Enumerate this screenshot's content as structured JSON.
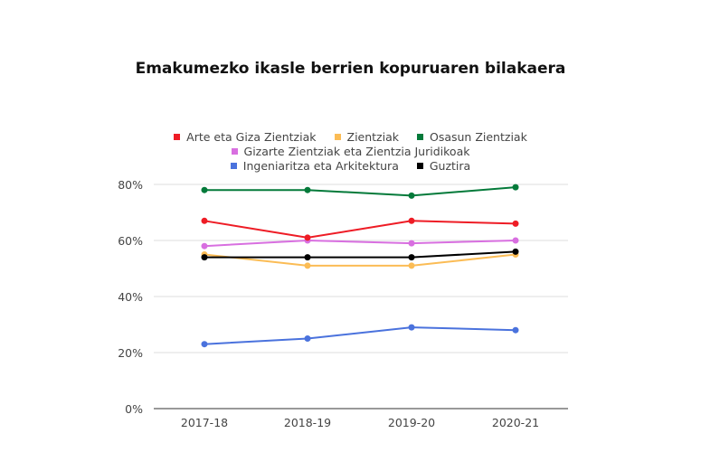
{
  "chart_data": {
    "type": "line",
    "title": "Emakumezko ikasle berrien kopuruaren bilakaera",
    "categories": [
      "2017-18",
      "2018-19",
      "2019-20",
      "2020-21"
    ],
    "ylim": [
      0,
      80
    ],
    "yticks": [
      "0%",
      "20%",
      "40%",
      "60%",
      "80%"
    ],
    "grid": true,
    "legend_position": "top",
    "series": [
      {
        "name": "Arte eta Giza Zientziak",
        "color": "#ee1c25",
        "values": [
          67,
          61,
          67,
          66
        ]
      },
      {
        "name": "Zientziak",
        "color": "#fbbc55",
        "values": [
          55,
          51,
          51,
          55
        ]
      },
      {
        "name": "Osasun Zientziak",
        "color": "#047a3a",
        "values": [
          78,
          78,
          76,
          79
        ]
      },
      {
        "name": "Gizarte Zientziak eta Zientzia Juridikoak",
        "color": "#d86fe0",
        "values": [
          58,
          60,
          59,
          60
        ]
      },
      {
        "name": "Ingeniaritza eta Arkitektura",
        "color": "#4a72dd",
        "values": [
          23,
          25,
          29,
          28
        ]
      },
      {
        "name": "Guztira",
        "color": "#000000",
        "values": [
          54,
          54,
          54,
          56
        ]
      }
    ]
  }
}
